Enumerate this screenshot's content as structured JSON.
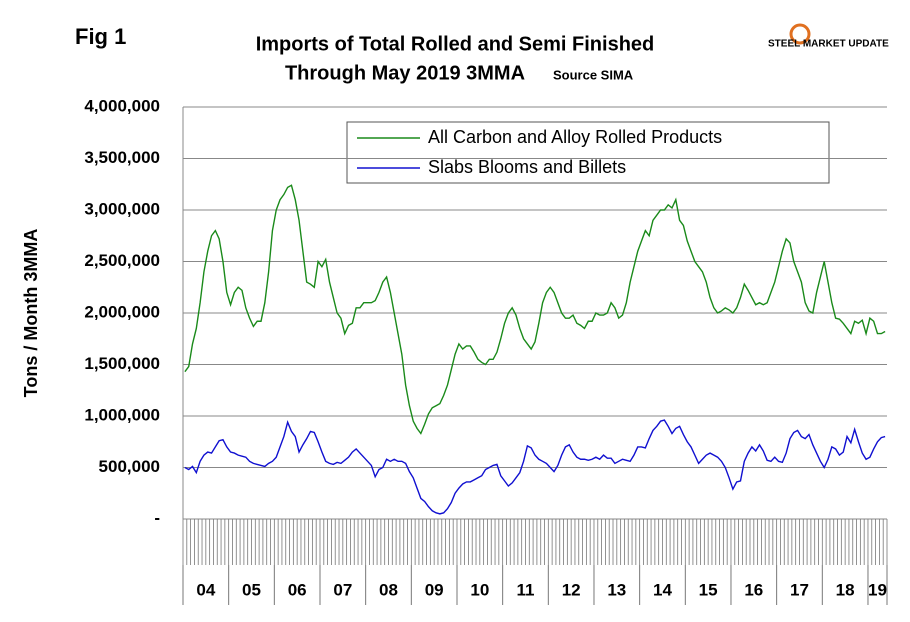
{
  "chart_data": {
    "type": "line",
    "figure_label": "Fig 1",
    "title": "Imports of Total Rolled and Semi Finished",
    "subtitle": "Through May 2019 3MMA",
    "source": "Source SIMA",
    "logo": "STEEL MARKET UPDATE",
    "y_label": "Tons / Month 3MMA",
    "year_labels": [
      "04",
      "05",
      "06",
      "07",
      "08",
      "09",
      "10",
      "11",
      "12",
      "13",
      "14",
      "15",
      "16",
      "17",
      "18",
      "19"
    ],
    "categories": [
      null,
      null,
      null,
      null,
      null,
      null,
      null,
      null,
      null,
      null,
      null,
      null,
      null,
      null,
      null,
      null,
      null,
      null,
      null,
      null,
      null,
      null,
      null,
      null,
      null,
      null,
      null,
      null,
      null,
      null,
      null,
      null,
      null,
      null,
      null,
      null,
      null,
      null,
      null,
      null,
      null,
      null,
      null,
      null,
      null,
      null,
      null,
      null,
      null,
      null,
      null,
      null,
      null,
      null,
      null,
      null,
      null,
      null,
      null,
      null,
      null,
      null,
      null,
      null,
      null,
      null,
      null,
      null,
      null,
      null,
      null,
      null,
      null,
      null,
      null,
      null,
      null,
      null,
      null,
      null,
      null,
      null,
      null,
      null,
      null,
      null,
      null,
      null,
      null,
      null,
      null,
      null,
      null,
      null,
      null,
      null,
      null,
      null,
      null,
      null,
      null,
      null,
      null,
      null,
      null,
      null,
      null,
      null,
      null,
      null,
      null,
      null,
      null,
      null,
      null,
      null,
      null,
      null,
      null,
      null,
      null,
      null,
      null,
      null,
      null,
      null,
      null,
      null,
      null,
      null,
      null,
      null,
      null,
      null,
      null,
      null,
      null,
      null,
      null,
      null,
      null,
      null,
      null,
      null,
      null,
      null,
      null,
      null,
      null,
      null,
      null,
      null,
      null,
      null,
      null,
      null,
      null,
      null,
      null,
      null,
      null,
      null,
      null,
      null,
      null,
      null,
      null,
      null,
      null,
      null,
      null,
      null,
      null,
      null,
      null,
      null,
      null,
      null,
      null,
      null,
      null,
      null,
      null,
      null,
      null
    ],
    "series": [
      {
        "name": "All Carbon and Alloy Rolled Products",
        "color": "#1a8a1a",
        "values": [
          1430000,
          1480000,
          1700000,
          1850000,
          2100000,
          2400000,
          2600000,
          2750000,
          2800000,
          2720000,
          2500000,
          2200000,
          2080000,
          2200000,
          2250000,
          2220000,
          2050000,
          1950000,
          1870000,
          1920000,
          1920000,
          2100000,
          2400000,
          2800000,
          3000000,
          3100000,
          3150000,
          3220000,
          3240000,
          3100000,
          2900000,
          2600000,
          2300000,
          2280000,
          2250000,
          2500000,
          2450000,
          2520000,
          2300000,
          2150000,
          2000000,
          1950000,
          1800000,
          1880000,
          1900000,
          2050000,
          2050000,
          2100000,
          2100000,
          2100000,
          2120000,
          2200000,
          2300000,
          2350000,
          2200000,
          2000000,
          1800000,
          1600000,
          1300000,
          1100000,
          950000,
          880000,
          830000,
          920000,
          1020000,
          1080000,
          1100000,
          1120000,
          1200000,
          1300000,
          1450000,
          1600000,
          1700000,
          1650000,
          1680000,
          1680000,
          1620000,
          1550000,
          1520000,
          1500000,
          1550000,
          1550000,
          1620000,
          1750000,
          1900000,
          2000000,
          2050000,
          1980000,
          1850000,
          1750000,
          1700000,
          1650000,
          1720000,
          1900000,
          2100000,
          2200000,
          2250000,
          2200000,
          2100000,
          2000000,
          1950000,
          1950000,
          1980000,
          1900000,
          1880000,
          1850000,
          1920000,
          1920000,
          2000000,
          1980000,
          1980000,
          2000000,
          2100000,
          2050000,
          1950000,
          1980000,
          2100000,
          2300000,
          2450000,
          2600000,
          2700000,
          2800000,
          2750000,
          2900000,
          2950000,
          3000000,
          3000000,
          3050000,
          3020000,
          3100000,
          2900000,
          2850000,
          2700000,
          2600000,
          2500000,
          2450000,
          2400000,
          2300000,
          2150000,
          2050000,
          2000000,
          2020000,
          2050000,
          2030000,
          2000000,
          2050000,
          2150000,
          2280000,
          2220000,
          2150000,
          2080000,
          2100000,
          2080000,
          2100000,
          2200000,
          2300000,
          2450000,
          2600000,
          2720000,
          2680000,
          2500000,
          2400000,
          2300000,
          2100000,
          2020000,
          2000000,
          2200000,
          2350000,
          2500000,
          2300000,
          2100000,
          1950000,
          1940000,
          1900000,
          1850000,
          1800000,
          1920000,
          1900000,
          1930000,
          1800000,
          1950000,
          1920000,
          1800000,
          1800000,
          1820000
        ]
      },
      {
        "name": "Slabs Blooms and Billets",
        "color": "#1010d0",
        "values": [
          500000,
          480000,
          510000,
          450000,
          560000,
          620000,
          650000,
          640000,
          700000,
          760000,
          770000,
          700000,
          650000,
          640000,
          620000,
          610000,
          600000,
          560000,
          540000,
          530000,
          520000,
          510000,
          540000,
          560000,
          600000,
          700000,
          800000,
          940000,
          850000,
          800000,
          650000,
          720000,
          780000,
          850000,
          840000,
          750000,
          650000,
          560000,
          540000,
          530000,
          550000,
          540000,
          570000,
          600000,
          650000,
          680000,
          640000,
          600000,
          560000,
          520000,
          410000,
          480000,
          500000,
          580000,
          560000,
          580000,
          560000,
          560000,
          540000,
          460000,
          400000,
          300000,
          200000,
          170000,
          120000,
          80000,
          60000,
          50000,
          60000,
          100000,
          160000,
          250000,
          300000,
          340000,
          360000,
          360000,
          380000,
          400000,
          420000,
          480000,
          500000,
          520000,
          530000,
          420000,
          370000,
          320000,
          350000,
          400000,
          450000,
          560000,
          710000,
          690000,
          620000,
          580000,
          560000,
          540000,
          500000,
          460000,
          520000,
          620000,
          700000,
          720000,
          650000,
          600000,
          580000,
          580000,
          570000,
          580000,
          600000,
          580000,
          620000,
          590000,
          590000,
          540000,
          560000,
          580000,
          570000,
          560000,
          620000,
          700000,
          700000,
          690000,
          780000,
          860000,
          900000,
          950000,
          960000,
          900000,
          830000,
          880000,
          900000,
          820000,
          750000,
          700000,
          620000,
          540000,
          580000,
          620000,
          640000,
          620000,
          600000,
          560000,
          500000,
          400000,
          290000,
          360000,
          370000,
          560000,
          640000,
          700000,
          660000,
          720000,
          660000,
          570000,
          560000,
          600000,
          560000,
          550000,
          640000,
          780000,
          840000,
          860000,
          800000,
          780000,
          820000,
          720000,
          640000,
          560000,
          500000,
          580000,
          700000,
          680000,
          620000,
          650000,
          800000,
          740000,
          870000,
          750000,
          640000,
          580000,
          600000,
          680000,
          750000,
          790000,
          800000
        ]
      }
    ],
    "ylim": [
      0,
      4000000
    ],
    "yticks": [
      {
        "value": 0,
        "label": "-"
      },
      {
        "value": 500000,
        "label": "500,000"
      },
      {
        "value": 1000000,
        "label": "1,000,000"
      },
      {
        "value": 1500000,
        "label": "1,500,000"
      },
      {
        "value": 2000000,
        "label": "2,000,000"
      },
      {
        "value": 2500000,
        "label": "2,500,000"
      },
      {
        "value": 3000000,
        "label": "3,000,000"
      },
      {
        "value": 3500000,
        "label": "3,500,000"
      },
      {
        "value": 4000000,
        "label": "4,000,000"
      }
    ],
    "grid": true
  }
}
